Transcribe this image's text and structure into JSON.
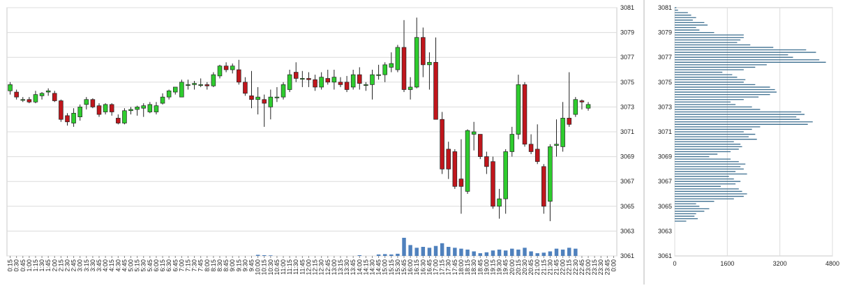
{
  "chart_data": [
    {
      "type": "candlestick",
      "name": "price-chart",
      "ylim": [
        3061,
        3081
      ],
      "y_ticks": [
        "3081",
        "3079",
        "3077",
        "3075",
        "3073",
        "3071",
        "3069",
        "3067",
        "3065",
        "3063",
        "3061"
      ],
      "up_color": "#2ecc2e",
      "down_color": "#c0161c",
      "volume_color": "#4f81bd",
      "grid": "horizontal",
      "times": [
        "0:15",
        "0:30",
        "0:45",
        "1:00",
        "1:15",
        "1:30",
        "1:45",
        "2:00",
        "2:15",
        "2:30",
        "2:45",
        "3:00",
        "3:15",
        "3:30",
        "3:45",
        "4:00",
        "4:15",
        "4:30",
        "4:45",
        "5:00",
        "5:15",
        "5:30",
        "5:45",
        "6:00",
        "6:15",
        "6:30",
        "6:45",
        "7:00",
        "7:15",
        "7:30",
        "7:45",
        "8:00",
        "8:15",
        "8:30",
        "8:45",
        "9:00",
        "9:15",
        "9:30",
        "9:45",
        "10:00",
        "10:15",
        "10:30",
        "10:45",
        "11:00",
        "11:15",
        "11:30",
        "11:45",
        "12:00",
        "12:15",
        "12:30",
        "12:45",
        "13:00",
        "13:15",
        "13:30",
        "13:45",
        "14:00",
        "14:15",
        "14:30",
        "14:45",
        "15:00",
        "15:15",
        "15:30",
        "15:45",
        "16:00",
        "16:15",
        "16:30",
        "16:45",
        "17:00",
        "17:15",
        "17:30",
        "17:45",
        "18:00",
        "18:15",
        "18:30",
        "18:45",
        "19:00",
        "19:15",
        "19:30",
        "19:45",
        "20:00",
        "20:15",
        "20:30",
        "20:45",
        "21:00",
        "21:15",
        "21:30",
        "21:45",
        "22:00",
        "22:15",
        "22:30",
        "22:45",
        "23:00",
        "23:15",
        "23:30",
        "23:45",
        "0:00"
      ],
      "candles": [
        {
          "t": "0:15",
          "o": 3074.3,
          "h": 3075.0,
          "l": 3074.0,
          "c": 3074.8
        },
        {
          "t": "0:30",
          "o": 3074.2,
          "h": 3074.4,
          "l": 3073.6,
          "c": 3073.8
        },
        {
          "t": "0:45",
          "o": 3073.6,
          "h": 3073.8,
          "l": 3073.4,
          "c": 3073.6
        },
        {
          "t": "1:00",
          "o": 3073.6,
          "h": 3073.8,
          "l": 3073.3,
          "c": 3073.4
        },
        {
          "t": "1:15",
          "o": 3073.4,
          "h": 3074.3,
          "l": 3073.3,
          "c": 3074.0
        },
        {
          "t": "1:30",
          "o": 3073.9,
          "h": 3074.2,
          "l": 3073.6,
          "c": 3074.1
        },
        {
          "t": "1:45",
          "o": 3074.2,
          "h": 3074.5,
          "l": 3073.9,
          "c": 3074.3
        },
        {
          "t": "2:00",
          "o": 3074.1,
          "h": 3074.3,
          "l": 3073.4,
          "c": 3073.5
        },
        {
          "t": "2:15",
          "o": 3073.5,
          "h": 3073.6,
          "l": 3071.8,
          "c": 3072.0
        },
        {
          "t": "2:30",
          "o": 3072.3,
          "h": 3072.5,
          "l": 3071.5,
          "c": 3071.8
        },
        {
          "t": "2:45",
          "o": 3071.7,
          "h": 3072.9,
          "l": 3071.4,
          "c": 3072.5
        },
        {
          "t": "3:00",
          "o": 3072.2,
          "h": 3073.2,
          "l": 3071.9,
          "c": 3073.0
        },
        {
          "t": "3:15",
          "o": 3073.2,
          "h": 3073.8,
          "l": 3072.8,
          "c": 3073.6
        },
        {
          "t": "3:30",
          "o": 3073.6,
          "h": 3073.7,
          "l": 3072.9,
          "c": 3073.0
        },
        {
          "t": "3:45",
          "o": 3073.1,
          "h": 3073.3,
          "l": 3072.2,
          "c": 3072.4
        },
        {
          "t": "4:00",
          "o": 3072.6,
          "h": 3073.3,
          "l": 3072.4,
          "c": 3073.2
        },
        {
          "t": "4:15",
          "o": 3073.2,
          "h": 3073.3,
          "l": 3072.3,
          "c": 3072.6
        },
        {
          "t": "4:30",
          "o": 3072.1,
          "h": 3072.4,
          "l": 3071.6,
          "c": 3071.7
        },
        {
          "t": "4:45",
          "o": 3071.7,
          "h": 3072.9,
          "l": 3071.6,
          "c": 3072.7
        },
        {
          "t": "5:00",
          "o": 3072.7,
          "h": 3073.0,
          "l": 3072.4,
          "c": 3072.8
        },
        {
          "t": "5:15",
          "o": 3072.8,
          "h": 3073.1,
          "l": 3072.3,
          "c": 3073.0
        },
        {
          "t": "5:30",
          "o": 3072.9,
          "h": 3073.3,
          "l": 3072.2,
          "c": 3073.1
        },
        {
          "t": "5:45",
          "o": 3072.6,
          "h": 3073.4,
          "l": 3072.5,
          "c": 3073.2
        },
        {
          "t": "6:00",
          "o": 3072.6,
          "h": 3073.4,
          "l": 3072.4,
          "c": 3073.1
        },
        {
          "t": "6:15",
          "o": 3073.3,
          "h": 3074.1,
          "l": 3073.2,
          "c": 3073.8
        },
        {
          "t": "6:30",
          "o": 3073.8,
          "h": 3074.4,
          "l": 3073.6,
          "c": 3074.3
        },
        {
          "t": "6:45",
          "o": 3074.2,
          "h": 3074.6,
          "l": 3074.0,
          "c": 3074.6
        },
        {
          "t": "7:00",
          "o": 3073.8,
          "h": 3075.2,
          "l": 3073.8,
          "c": 3075.0
        },
        {
          "t": "7:15",
          "o": 3074.8,
          "h": 3075.2,
          "l": 3074.4,
          "c": 3074.8
        },
        {
          "t": "7:30",
          "o": 3074.8,
          "h": 3075.1,
          "l": 3074.4,
          "c": 3074.9
        },
        {
          "t": "7:45",
          "o": 3074.8,
          "h": 3075.3,
          "l": 3074.6,
          "c": 3074.8
        },
        {
          "t": "8:00",
          "o": 3074.8,
          "h": 3075.0,
          "l": 3074.4,
          "c": 3074.7
        },
        {
          "t": "8:15",
          "o": 3074.7,
          "h": 3075.8,
          "l": 3074.6,
          "c": 3075.6
        },
        {
          "t": "8:30",
          "o": 3075.5,
          "h": 3076.4,
          "l": 3075.3,
          "c": 3076.3
        },
        {
          "t": "8:45",
          "o": 3076.3,
          "h": 3076.6,
          "l": 3075.8,
          "c": 3076.0
        },
        {
          "t": "9:00",
          "o": 3076.0,
          "h": 3076.5,
          "l": 3075.7,
          "c": 3076.3
        },
        {
          "t": "9:15",
          "o": 3076.0,
          "h": 3076.8,
          "l": 3074.8,
          "c": 3075.0
        },
        {
          "t": "9:30",
          "o": 3075.0,
          "h": 3075.4,
          "l": 3073.9,
          "c": 3074.1
        },
        {
          "t": "9:45",
          "o": 3073.9,
          "h": 3075.9,
          "l": 3072.9,
          "c": 3073.6
        },
        {
          "t": "10:00",
          "o": 3073.6,
          "h": 3074.6,
          "l": 3072.4,
          "c": 3073.8
        },
        {
          "t": "10:15",
          "o": 3073.6,
          "h": 3074.0,
          "l": 3071.4,
          "c": 3073.3
        },
        {
          "t": "10:30",
          "o": 3073.0,
          "h": 3074.4,
          "l": 3072.0,
          "c": 3073.8
        },
        {
          "t": "10:45",
          "o": 3073.8,
          "h": 3074.6,
          "l": 3073.4,
          "c": 3073.8
        },
        {
          "t": "11:00",
          "o": 3073.8,
          "h": 3075.0,
          "l": 3073.6,
          "c": 3074.8
        },
        {
          "t": "11:15",
          "o": 3074.4,
          "h": 3076.0,
          "l": 3074.2,
          "c": 3075.6
        },
        {
          "t": "11:30",
          "o": 3075.8,
          "h": 3076.6,
          "l": 3075.0,
          "c": 3075.3
        },
        {
          "t": "11:45",
          "o": 3075.3,
          "h": 3075.9,
          "l": 3074.6,
          "c": 3075.3
        },
        {
          "t": "12:00",
          "o": 3075.3,
          "h": 3075.8,
          "l": 3074.6,
          "c": 3075.2
        },
        {
          "t": "12:15",
          "o": 3075.2,
          "h": 3075.6,
          "l": 3074.3,
          "c": 3074.6
        },
        {
          "t": "12:30",
          "o": 3074.6,
          "h": 3075.8,
          "l": 3074.4,
          "c": 3075.4
        },
        {
          "t": "12:45",
          "o": 3075.3,
          "h": 3076.0,
          "l": 3074.8,
          "c": 3075.0
        },
        {
          "t": "13:00",
          "o": 3075.0,
          "h": 3076.0,
          "l": 3074.4,
          "c": 3075.4
        },
        {
          "t": "13:15",
          "o": 3075.0,
          "h": 3075.4,
          "l": 3074.6,
          "c": 3074.8
        },
        {
          "t": "13:30",
          "o": 3075.0,
          "h": 3075.5,
          "l": 3074.2,
          "c": 3074.4
        },
        {
          "t": "13:45",
          "o": 3074.6,
          "h": 3076.0,
          "l": 3074.4,
          "c": 3075.6
        },
        {
          "t": "14:00",
          "o": 3075.6,
          "h": 3076.2,
          "l": 3074.4,
          "c": 3074.9
        },
        {
          "t": "14:15",
          "o": 3074.8,
          "h": 3075.0,
          "l": 3074.3,
          "c": 3074.8
        },
        {
          "t": "14:30",
          "o": 3074.8,
          "h": 3076.0,
          "l": 3073.6,
          "c": 3075.6
        },
        {
          "t": "14:45",
          "o": 3075.6,
          "h": 3076.4,
          "l": 3075.2,
          "c": 3075.6
        },
        {
          "t": "15:00",
          "o": 3075.6,
          "h": 3076.6,
          "l": 3075.0,
          "c": 3076.4
        },
        {
          "t": "15:15",
          "o": 3076.2,
          "h": 3077.4,
          "l": 3075.8,
          "c": 3076.5
        },
        {
          "t": "15:30",
          "o": 3076.0,
          "h": 3078.0,
          "l": 3075.8,
          "c": 3077.8
        },
        {
          "t": "15:45",
          "o": 3077.8,
          "h": 3080.0,
          "l": 3074.2,
          "c": 3074.4
        },
        {
          "t": "16:00",
          "o": 3074.4,
          "h": 3075.4,
          "l": 3073.6,
          "c": 3074.6
        },
        {
          "t": "16:15",
          "o": 3074.6,
          "h": 3080.2,
          "l": 3074.5,
          "c": 3078.6
        },
        {
          "t": "16:30",
          "o": 3078.6,
          "h": 3079.4,
          "l": 3075.4,
          "c": 3076.4
        },
        {
          "t": "16:45",
          "o": 3076.4,
          "h": 3077.4,
          "l": 3074.4,
          "c": 3076.6
        },
        {
          "t": "17:00",
          "o": 3076.6,
          "h": 3078.6,
          "l": 3072.0,
          "c": 3072.0
        },
        {
          "t": "17:15",
          "o": 3072.0,
          "h": 3072.6,
          "l": 3067.6,
          "c": 3068.0
        },
        {
          "t": "17:30",
          "o": 3069.6,
          "h": 3070.2,
          "l": 3067.2,
          "c": 3068.0
        },
        {
          "t": "17:45",
          "o": 3069.4,
          "h": 3069.6,
          "l": 3066.4,
          "c": 3066.6
        },
        {
          "t": "18:00",
          "o": 3067.2,
          "h": 3070.4,
          "l": 3064.4,
          "c": 3066.6
        },
        {
          "t": "18:15",
          "o": 3066.2,
          "h": 3071.2,
          "l": 3066.0,
          "c": 3071.1
        },
        {
          "t": "18:30",
          "o": 3070.8,
          "h": 3071.8,
          "l": 3069.5,
          "c": 3071.0
        },
        {
          "t": "18:45",
          "o": 3070.8,
          "h": 3070.8,
          "l": 3068.8,
          "c": 3069.0
        },
        {
          "t": "19:00",
          "o": 3069.0,
          "h": 3069.4,
          "l": 3067.6,
          "c": 3068.2
        },
        {
          "t": "19:15",
          "o": 3068.6,
          "h": 3069.0,
          "l": 3064.8,
          "c": 3065.0
        },
        {
          "t": "19:30",
          "o": 3065.0,
          "h": 3066.4,
          "l": 3064.0,
          "c": 3065.6
        },
        {
          "t": "19:45",
          "o": 3065.6,
          "h": 3069.6,
          "l": 3064.4,
          "c": 3069.4
        },
        {
          "t": "20:00",
          "o": 3069.4,
          "h": 3071.4,
          "l": 3069.0,
          "c": 3070.8
        },
        {
          "t": "20:15",
          "o": 3070.8,
          "h": 3075.6,
          "l": 3070.4,
          "c": 3074.8
        },
        {
          "t": "20:30",
          "o": 3074.8,
          "h": 3075.0,
          "l": 3069.8,
          "c": 3070.0
        },
        {
          "t": "20:45",
          "o": 3070.0,
          "h": 3070.8,
          "l": 3069.2,
          "c": 3069.4
        },
        {
          "t": "21:00",
          "o": 3069.6,
          "h": 3071.6,
          "l": 3068.4,
          "c": 3068.6
        },
        {
          "t": "21:15",
          "o": 3068.2,
          "h": 3068.4,
          "l": 3064.4,
          "c": 3065.0
        },
        {
          "t": "21:30",
          "o": 3065.4,
          "h": 3070.0,
          "l": 3063.8,
          "c": 3069.8
        },
        {
          "t": "21:45",
          "o": 3069.9,
          "h": 3072.0,
          "l": 3069.0,
          "c": 3070.0
        },
        {
          "t": "22:00",
          "o": 3069.8,
          "h": 3073.4,
          "l": 3069.4,
          "c": 3072.1
        },
        {
          "t": "22:15",
          "o": 3072.1,
          "h": 3075.8,
          "l": 3071.4,
          "c": 3071.6
        },
        {
          "t": "22:30",
          "o": 3072.4,
          "h": 3073.8,
          "l": 3072.2,
          "c": 3073.6
        },
        {
          "t": "22:45",
          "o": 3073.5,
          "h": 3073.6,
          "l": 3072.8,
          "c": 3073.4
        },
        {
          "t": "23:00",
          "o": 3072.9,
          "h": 3073.4,
          "l": 3072.7,
          "c": 3073.2
        }
      ],
      "volume_max": 1,
      "volumes": [
        0,
        0,
        0,
        0,
        0,
        0,
        0,
        0,
        0,
        0,
        0,
        0,
        0,
        0,
        0,
        0,
        0,
        0,
        0,
        0,
        0,
        0,
        0,
        0,
        0,
        0,
        0,
        0,
        0,
        0,
        0,
        0,
        0,
        0,
        0,
        0,
        0,
        0,
        0,
        0.06,
        0.04,
        0.03,
        0,
        0,
        0,
        0,
        0,
        0,
        0,
        0,
        0,
        0,
        0,
        0,
        0,
        0.04,
        0,
        0,
        0.08,
        0.1,
        0.08,
        0.12,
        1,
        0.6,
        0.45,
        0.5,
        0.45,
        0.55,
        0.7,
        0.5,
        0.45,
        0.4,
        0.35,
        0.25,
        0.15,
        0.2,
        0.3,
        0.35,
        0.3,
        0.4,
        0.35,
        0.45,
        0.25,
        0.15,
        0.18,
        0.25,
        0.4,
        0.35,
        0.45,
        0.4,
        0,
        0,
        0,
        0,
        0,
        0
      ]
    },
    {
      "type": "horizontal-bar",
      "name": "volume-profile",
      "ylim": [
        3061,
        3081
      ],
      "y_ticks": [
        "3081",
        "3079",
        "3077",
        "3075",
        "3073",
        "3071",
        "3069",
        "3067",
        "3065",
        "3063",
        "3061"
      ],
      "xlim": [
        0,
        4800
      ],
      "x_ticks": [
        "0",
        "1600",
        "3200",
        "4800"
      ],
      "bar_color": "#3b6e8f",
      "price_step": 0.2,
      "levels_start": 3063.8,
      "levels": [
        350,
        700,
        600,
        650,
        900,
        1050,
        750,
        650,
        1200,
        1800,
        2100,
        2200,
        2050,
        1950,
        1400,
        1850,
        2000,
        1800,
        1650,
        2200,
        1850,
        2100,
        2000,
        2150,
        1950,
        1700,
        1050,
        1300,
        1700,
        1950,
        2050,
        2000,
        1800,
        2500,
        2250,
        2450,
        2100,
        2350,
        2600,
        4050,
        4200,
        3800,
        3700,
        3950,
        3850,
        2600,
        2350,
        1850,
        1700,
        2100,
        2550,
        2900,
        3100,
        3050,
        2900,
        2450,
        2100,
        2150,
        1900,
        1750,
        1450,
        2100,
        2450,
        2800,
        4600,
        4400,
        3600,
        3450,
        4300,
        4000,
        3000,
        2300,
        1900,
        2000,
        2100,
        2100,
        1200,
        750,
        650,
        1000,
        900,
        550,
        650,
        500,
        400,
        100,
        50
      ]
    }
  ]
}
